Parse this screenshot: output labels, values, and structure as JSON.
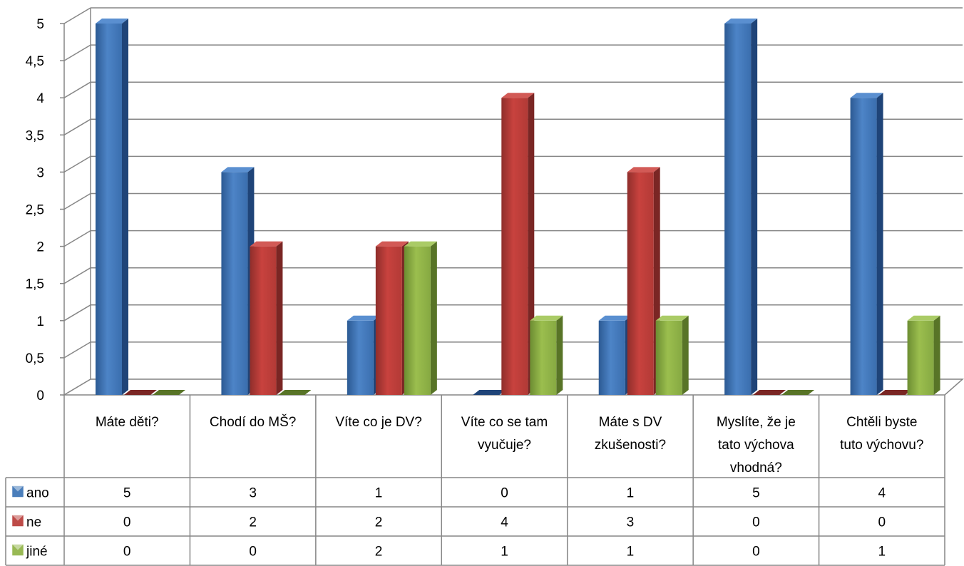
{
  "chart_data": {
    "type": "bar",
    "categories": [
      [
        "Máte děti?"
      ],
      [
        "Chodí do MŠ?"
      ],
      [
        "Víte co je DV?"
      ],
      [
        "Víte co se tam",
        "vyučuje?"
      ],
      [
        "Máte s DV",
        "zkušenosti?"
      ],
      [
        "Myslíte, že je",
        "tato výchova",
        "vhodná?"
      ],
      [
        "Chtěli byste",
        "tuto výchovu?"
      ]
    ],
    "series": [
      {
        "name": "ano",
        "values": [
          5,
          3,
          1,
          0,
          1,
          5,
          4
        ],
        "color": "#4A7EBB"
      },
      {
        "name": "ne",
        "values": [
          0,
          2,
          2,
          4,
          3,
          0,
          0
        ],
        "color": "#BE4B48"
      },
      {
        "name": "jiné",
        "values": [
          0,
          0,
          2,
          1,
          1,
          0,
          1
        ],
        "color": "#98B954"
      }
    ],
    "ylim": [
      0,
      5
    ],
    "yticks": [
      "0",
      "0,5",
      "1",
      "1,5",
      "2",
      "2,5",
      "3",
      "3,5",
      "4",
      "4,5",
      "5"
    ],
    "grid": true,
    "data_table": true
  }
}
